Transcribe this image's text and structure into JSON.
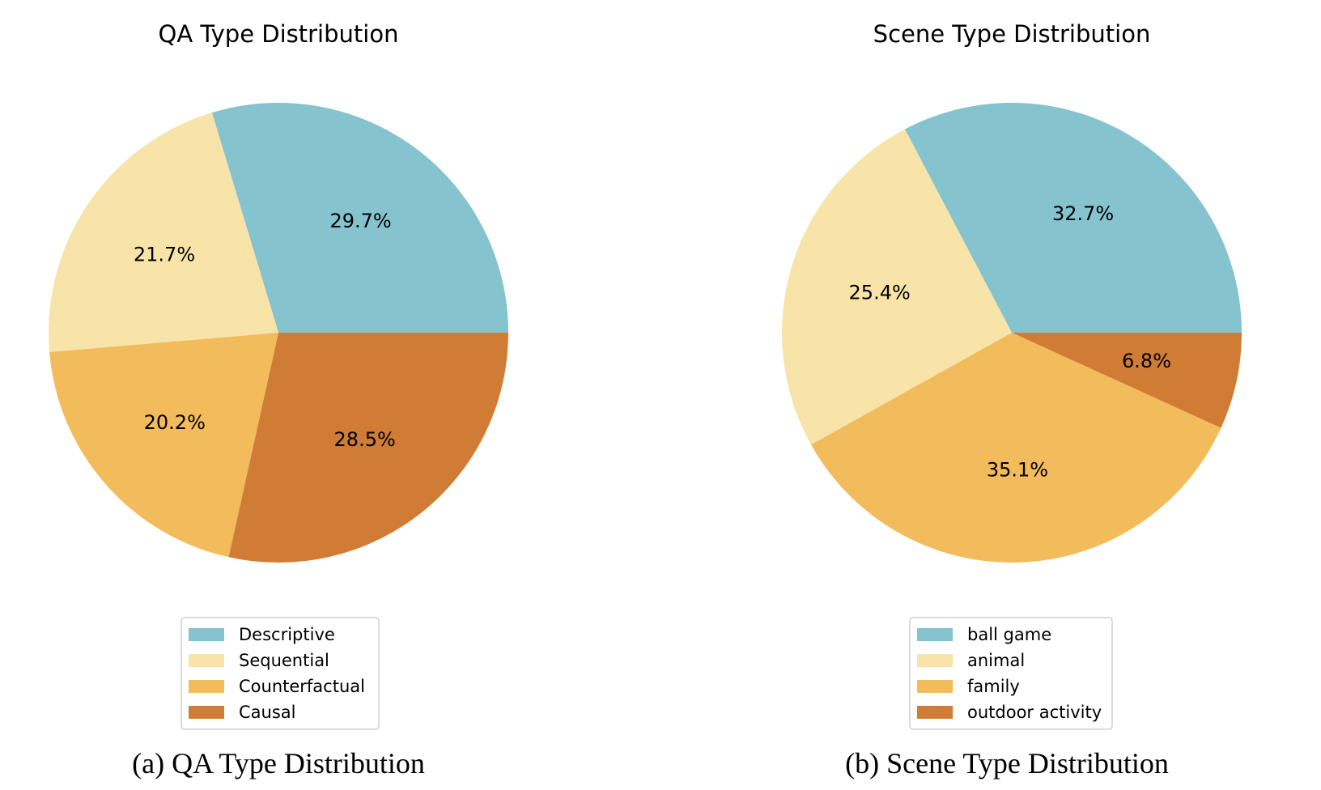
{
  "chart_data": [
    {
      "type": "pie",
      "title": "QA Type Distribution",
      "categories": [
        "Descriptive",
        "Sequential",
        "Counterfactual",
        "Causal"
      ],
      "values": [
        29.7,
        21.7,
        20.2,
        28.5
      ],
      "value_labels": [
        "29.7%",
        "21.7%",
        "20.2%",
        "28.5%"
      ],
      "colors": [
        "#85C3CF",
        "#F8E4A9",
        "#F2BB5C",
        "#D07C35"
      ],
      "start_angle": "3 o'clock",
      "direction": "counterclockwise",
      "legend": "bottom-center"
    },
    {
      "type": "pie",
      "title": "Scene Type Distribution",
      "categories": [
        "ball game",
        "animal",
        "family",
        "outdoor activity"
      ],
      "values": [
        32.7,
        25.4,
        35.1,
        6.8
      ],
      "value_labels": [
        "32.7%",
        "25.4%",
        "35.1%",
        "6.8%"
      ],
      "colors": [
        "#85C3CF",
        "#F8E4A9",
        "#F2BB5C",
        "#D07C35"
      ],
      "start_angle": "3 o'clock",
      "direction": "counterclockwise",
      "legend": "bottom-center"
    }
  ],
  "captions": {
    "a": "(a) QA Type Distribution",
    "b": "(b) Scene Type Distribution"
  }
}
